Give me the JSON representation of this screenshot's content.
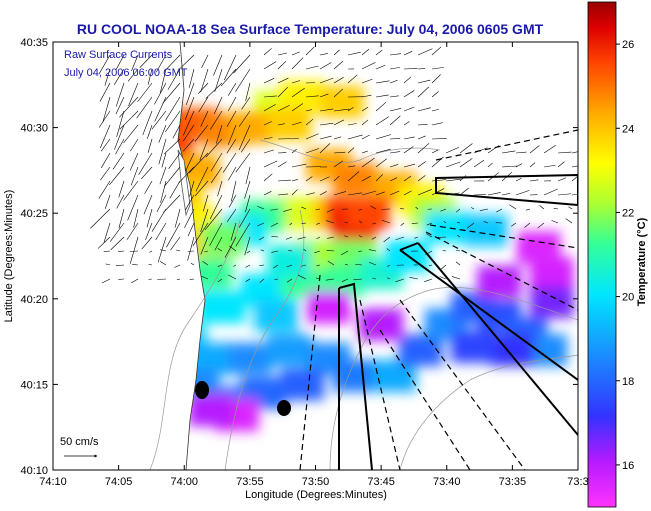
{
  "chart_data": {
    "type": "heatmap",
    "title": "RU COOL  NOAA-18  Sea Surface Temperature:  July 04, 2006 0605 GMT",
    "xlabel": "Longitude (Degrees:Minutes)",
    "ylabel": "Latitude (Degrees:Minutes)",
    "colorbar_label": "Temperature (°C)",
    "x_ticks": [
      "74:10",
      "74:05",
      "74:00",
      "73:55",
      "73:50",
      "73:45",
      "73:40",
      "73:35",
      "73:3"
    ],
    "x_tick_minutes": [
      10,
      5,
      0,
      -5,
      -10,
      -15,
      -20,
      -25,
      -30
    ],
    "y_ticks": [
      "40:10",
      "40:15",
      "40:20",
      "40:25",
      "40:30",
      "40:35"
    ],
    "y_tick_minutes": [
      10,
      15,
      20,
      25,
      30,
      35
    ],
    "xlim_minutes_from_74": [
      10,
      -30
    ],
    "ylim_minutes_from_40": [
      10,
      35
    ],
    "colorbar_ticks": [
      "16",
      "18",
      "20",
      "22",
      "24",
      "26"
    ],
    "colorbar_values": [
      16,
      18,
      20,
      22,
      24,
      26
    ],
    "colorbar_range": [
      15,
      27
    ],
    "inset_text": [
      "Raw Surface Currents",
      "July 04, 2006 06:00 GMT"
    ],
    "scale_label": "50 cm/s",
    "sst_patches": [
      {
        "x": -7,
        "y": 31.2,
        "t": 22
      },
      {
        "x": -9,
        "y": 31.8,
        "t": 22.5
      },
      {
        "x": -12,
        "y": 31.5,
        "t": 23
      },
      {
        "x": 2,
        "y": 30.2,
        "t": 25.5
      },
      {
        "x": 4,
        "y": 29.8,
        "t": 26.5
      },
      {
        "x": 1,
        "y": 28.5,
        "t": 25
      },
      {
        "x": 3,
        "y": 27.7,
        "t": 26
      },
      {
        "x": -1,
        "y": 30.2,
        "t": 24.5
      },
      {
        "x": -3,
        "y": 29.8,
        "t": 24
      },
      {
        "x": -5,
        "y": 30,
        "t": 23.5
      },
      {
        "x": -8,
        "y": 30.2,
        "t": 23
      },
      {
        "x": -1,
        "y": 27.5,
        "t": 23.5
      },
      {
        "x": 0.2,
        "y": 26,
        "t": 23
      },
      {
        "x": -0.8,
        "y": 24.5,
        "t": 22.5
      },
      {
        "x": -2,
        "y": 23,
        "t": 23
      },
      {
        "x": -11,
        "y": 27.8,
        "t": 23.5
      },
      {
        "x": -13,
        "y": 27,
        "t": 24
      },
      {
        "x": -16,
        "y": 26.5,
        "t": 23.5
      },
      {
        "x": -12,
        "y": 25,
        "t": 25
      },
      {
        "x": -13,
        "y": 24.2,
        "t": 25.5
      },
      {
        "x": -14,
        "y": 25,
        "t": 24.8
      },
      {
        "x": -9,
        "y": 25,
        "t": 23
      },
      {
        "x": -8,
        "y": 25,
        "t": 22
      },
      {
        "x": -6,
        "y": 24.8,
        "t": 20.5
      },
      {
        "x": -4.5,
        "y": 24,
        "t": 19.5
      },
      {
        "x": -3,
        "y": 23.5,
        "t": 21
      },
      {
        "x": -18,
        "y": 25.8,
        "t": 22.5
      },
      {
        "x": -19,
        "y": 25,
        "t": 21.5
      },
      {
        "x": -20,
        "y": 24.2,
        "t": 19.5
      },
      {
        "x": -23,
        "y": 24,
        "t": 19
      },
      {
        "x": -2,
        "y": 21.5,
        "t": 20.5
      },
      {
        "x": -1,
        "y": 19.5,
        "t": 20
      },
      {
        "x": -3,
        "y": 19.5,
        "t": 19.5
      },
      {
        "x": -6,
        "y": 20.5,
        "t": 19.5
      },
      {
        "x": -7,
        "y": 19,
        "t": 19
      },
      {
        "x": -9,
        "y": 21,
        "t": 20.5
      },
      {
        "x": -10,
        "y": 22.5,
        "t": 21.5
      },
      {
        "x": -13,
        "y": 22.5,
        "t": 21
      },
      {
        "x": -12,
        "y": 21,
        "t": 20.5
      },
      {
        "x": -15,
        "y": 21.5,
        "t": 20
      },
      {
        "x": -17,
        "y": 22.5,
        "t": 19.5
      },
      {
        "x": 0,
        "y": 17.5,
        "t": 19
      },
      {
        "x": -2,
        "y": 16.5,
        "t": 18.5
      },
      {
        "x": -5,
        "y": 16.5,
        "t": 18
      },
      {
        "x": -8,
        "y": 17,
        "t": 18.3
      },
      {
        "x": -11,
        "y": 16.5,
        "t": 18
      },
      {
        "x": -13,
        "y": 15.5,
        "t": 17.8
      },
      {
        "x": -16,
        "y": 15.5,
        "t": 18.5
      },
      {
        "x": -18,
        "y": 17,
        "t": 17.5
      },
      {
        "x": -20,
        "y": 18.5,
        "t": 18
      },
      {
        "x": -22,
        "y": 19.5,
        "t": 17.5
      },
      {
        "x": -24,
        "y": 19,
        "t": 17.3
      },
      {
        "x": -26,
        "y": 18,
        "t": 17.5
      },
      {
        "x": -27.5,
        "y": 17,
        "t": 18
      },
      {
        "x": -1,
        "y": 15,
        "t": 18
      },
      {
        "x": -3,
        "y": 14,
        "t": 17.8
      },
      {
        "x": -6,
        "y": 14.5,
        "t": 17.6
      },
      {
        "x": -9,
        "y": 15,
        "t": 17.5
      },
      {
        "x": -15,
        "y": 18.5,
        "t": 16
      },
      {
        "x": -11,
        "y": 19.5,
        "t": 15.6
      },
      {
        "x": -24,
        "y": 21,
        "t": 16
      },
      {
        "x": -28,
        "y": 21.5,
        "t": 15.6
      },
      {
        "x": -27,
        "y": 23,
        "t": 15.5
      },
      {
        "x": -4,
        "y": 13.2,
        "t": 15.5
      },
      {
        "x": -2,
        "y": 13.5,
        "t": 16
      },
      {
        "x": -28,
        "y": 19.8,
        "t": 16.5
      },
      {
        "x": -25,
        "y": 17,
        "t": 17
      },
      {
        "x": -22,
        "y": 17.2,
        "t": 17.2
      },
      {
        "x": -8,
        "y": 22.2,
        "t": 19.8
      }
    ]
  }
}
